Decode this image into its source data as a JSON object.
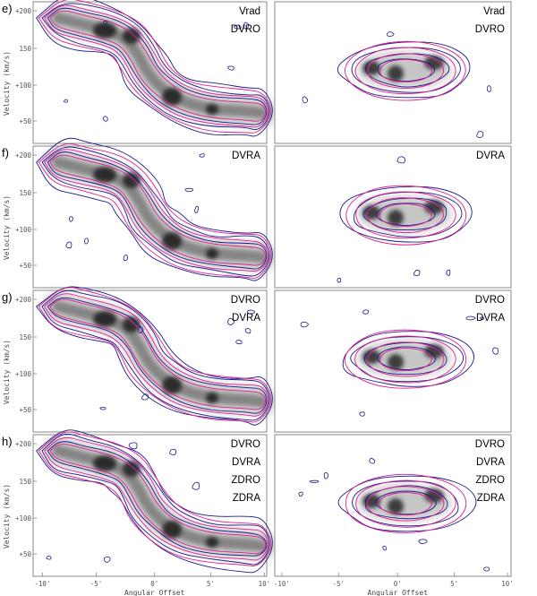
{
  "figure": {
    "rows": [
      {
        "label": "e)",
        "left_tags": [
          "Vrad",
          "DVRO"
        ],
        "right_tags": [
          "Vrad",
          "DVRO"
        ]
      },
      {
        "label": "f)",
        "left_tags": [
          "DVRA"
        ],
        "right_tags": [
          "DVRA"
        ]
      },
      {
        "label": "g)",
        "left_tags": [
          "DVRO",
          "DVRA"
        ],
        "right_tags": [
          "DVRO",
          "DVRA"
        ]
      },
      {
        "label": "h)",
        "left_tags": [
          "DVRO",
          "DVRA",
          "ZDRO",
          "ZDRA"
        ],
        "right_tags": [
          "DVRO",
          "DVRA",
          "ZDRO",
          "ZDRA"
        ]
      }
    ],
    "y_axis_label": "Velocity (km/s)",
    "y_ticks": [
      "+200",
      "150",
      "+100",
      "+50"
    ],
    "x_axis_label": "Angular Offset",
    "x_ticks": [
      "-10'",
      "-5'",
      "0'",
      "5'",
      "10'"
    ],
    "colors": {
      "model_contour": "#e0208a",
      "observed_contour": "#1a1a8c",
      "frame": "#888888",
      "greyscale_peak": "#1e1e1e"
    }
  }
}
